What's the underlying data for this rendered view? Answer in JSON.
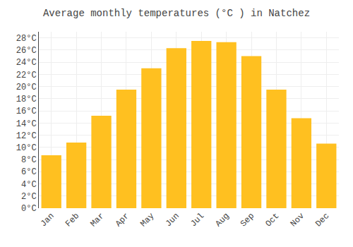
{
  "chart_data": {
    "type": "bar",
    "title": "Average monthly temperatures (°C ) in Natchez",
    "categories": [
      "Jan",
      "Feb",
      "Mar",
      "Apr",
      "May",
      "Jun",
      "Jul",
      "Aug",
      "Sep",
      "Oct",
      "Nov",
      "Dec"
    ],
    "values": [
      8.7,
      10.8,
      15.2,
      19.5,
      23.0,
      26.3,
      27.5,
      27.3,
      25.0,
      19.5,
      14.8,
      10.6
    ],
    "color": "#FFC020",
    "ylim": [
      0,
      29
    ],
    "yticks": [
      {
        "value": 0,
        "label": "0°C"
      },
      {
        "value": 2,
        "label": "2°C"
      },
      {
        "value": 4,
        "label": "4°C"
      },
      {
        "value": 6,
        "label": "6°C"
      },
      {
        "value": 8,
        "label": "8°C"
      },
      {
        "value": 10,
        "label": "10°C"
      },
      {
        "value": 12,
        "label": "12°C"
      },
      {
        "value": 14,
        "label": "14°C"
      },
      {
        "value": 16,
        "label": "16°C"
      },
      {
        "value": 18,
        "label": "18°C"
      },
      {
        "value": 20,
        "label": "20°C"
      },
      {
        "value": 22,
        "label": "22°C"
      },
      {
        "value": 24,
        "label": "24°C"
      },
      {
        "value": 26,
        "label": "26°C"
      },
      {
        "value": 28,
        "label": "28°C"
      }
    ],
    "grid": true
  }
}
